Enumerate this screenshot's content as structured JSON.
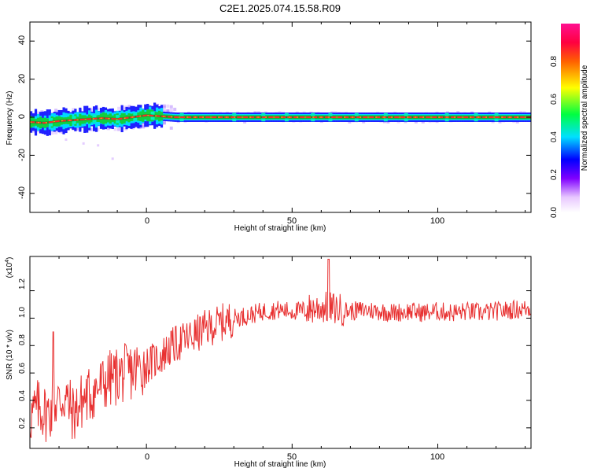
{
  "title": "C2E1.2025.074.15.58.R09",
  "colors": {
    "snr_line": "#e83030",
    "trace_center": "#ff2a2a",
    "trace_core": "#2a8a2a"
  },
  "chart_data": [
    {
      "type": "heatmap",
      "xlabel": "Height of straight line (km)",
      "ylabel": "Frequency (Hz)",
      "xlim": [
        -40,
        132
      ],
      "ylim": [
        -50,
        50
      ],
      "xticks": [
        0,
        50,
        100
      ],
      "yticks": [
        -40,
        -20,
        0,
        20,
        40
      ],
      "colorbar": {
        "label": "Normalized spectral amplitude",
        "range": [
          0,
          1
        ],
        "ticks": [
          "0.0",
          "0.2",
          "0.4",
          "0.6",
          "0.8"
        ]
      },
      "trace": {
        "height_km": [
          -40,
          -35,
          -30,
          -25,
          -20,
          -15,
          -10,
          -5,
          0,
          5,
          10,
          20,
          30,
          40,
          50,
          60,
          70,
          80,
          90,
          100,
          110,
          120,
          132
        ],
        "frequency_hz": [
          -2.5,
          -3,
          -2,
          -1.5,
          -1,
          -0.5,
          -1,
          0,
          1,
          0.5,
          0,
          0,
          0,
          0,
          0,
          0,
          0,
          0,
          0,
          0,
          0,
          0,
          0
        ]
      }
    },
    {
      "type": "line",
      "xlabel": "Height of straight line (km)",
      "ylabel": "SNR (10 * v/v)",
      "y_multiplier": "(x10⁴)",
      "xlim": [
        -40,
        132
      ],
      "ylim": [
        0.05,
        1.45
      ],
      "xticks": [
        0,
        50,
        100
      ],
      "yticks": [
        "0.2",
        "0.4",
        "0.6",
        "0.8",
        "1.0",
        "1.2"
      ],
      "series": [
        {
          "x": [
            -40,
            -37,
            -34,
            -31,
            -28,
            -25,
            -22,
            -19,
            -16,
            -13,
            -10,
            -7,
            -4,
            -1,
            2,
            5,
            8,
            11,
            14,
            17,
            20,
            25,
            30,
            35,
            40,
            45,
            50,
            55,
            60,
            65,
            70,
            75,
            80,
            85,
            90,
            95,
            100,
            105,
            110,
            115,
            120,
            125,
            132
          ],
          "y": [
            0.28,
            0.35,
            0.3,
            0.38,
            0.42,
            0.3,
            0.4,
            0.45,
            0.5,
            0.55,
            0.58,
            0.6,
            0.62,
            0.65,
            0.68,
            0.72,
            0.78,
            0.82,
            0.85,
            0.88,
            0.92,
            0.96,
            1.0,
            1.02,
            1.05,
            1.06,
            1.05,
            1.06,
            1.08,
            1.07,
            1.05,
            1.06,
            1.05,
            1.04,
            1.05,
            1.04,
            1.05,
            1.04,
            1.05,
            1.04,
            1.05,
            1.06,
            1.07
          ]
        }
      ]
    }
  ],
  "axis_labels": {
    "x_top": "Height of straight line (km)",
    "y_top": "Frequency (Hz)",
    "x_bottom": "Height of straight line (km)",
    "y_bottom": "SNR (10 * v/v)",
    "multiplier": "(x10",
    "multiplier_exp": "4",
    "multiplier_close": ")",
    "colorbar": "Normalized spectral amplitude"
  },
  "tick_labels": {
    "x": [
      "0",
      "50",
      "100"
    ],
    "y_top": [
      "40",
      "20",
      "0",
      "-20",
      "-40"
    ],
    "y_bottom": [
      "1.2",
      "1.0",
      "0.8",
      "0.6",
      "0.4",
      "0.2"
    ],
    "colorbar": [
      "0.0",
      "0.2",
      "0.4",
      "0.6",
      "0.8"
    ]
  }
}
